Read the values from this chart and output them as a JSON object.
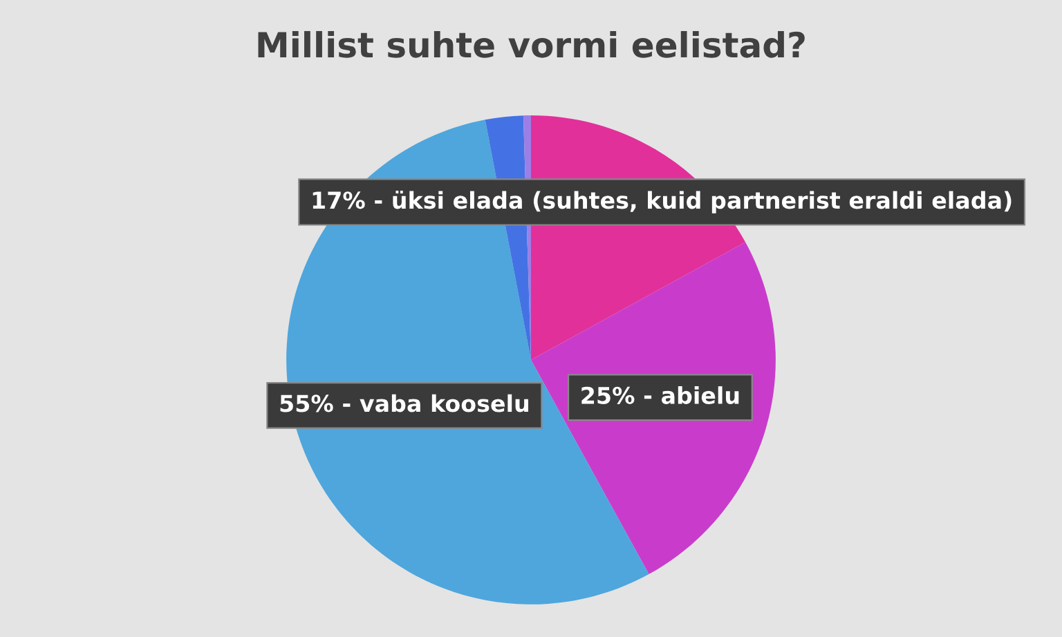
{
  "chart_data": {
    "type": "pie",
    "title": "Millist suhte vormi eelistad?",
    "categories": [
      "17% - üksi elada (suhtes, kuid partnerist eraldi elada)",
      "25% - abielu",
      "55% - vaba kooselu",
      null,
      null
    ],
    "values": [
      17,
      25,
      55,
      2.5,
      0.5
    ],
    "colors": [
      "#e2309a",
      "#c93ccb",
      "#4ea6dc",
      "#4472e4",
      "#9b7fe6"
    ],
    "legend": false
  }
}
